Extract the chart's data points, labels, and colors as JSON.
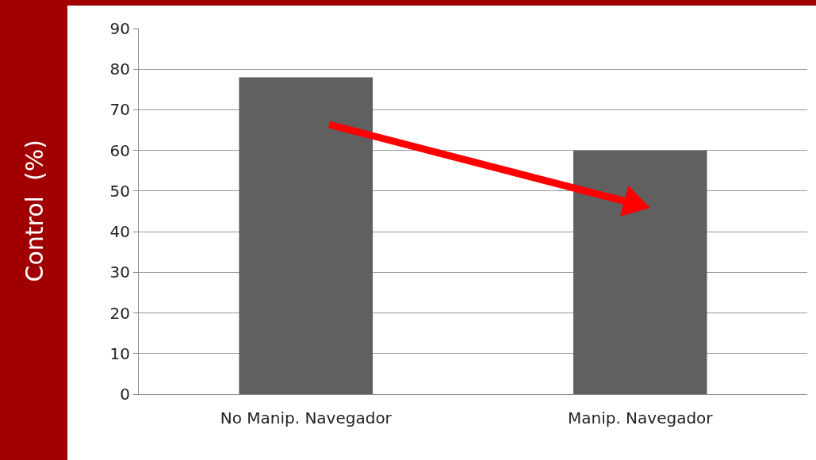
{
  "chart_data": {
    "type": "bar",
    "ylabel": "Control  (%)",
    "categories": [
      "No Manip. Navegador",
      "Manip. Navegador"
    ],
    "values": [
      78,
      60
    ],
    "color": "#606060",
    "ylim": [
      0,
      90
    ],
    "yticks": [
      0,
      10,
      20,
      30,
      40,
      50,
      60,
      70,
      80,
      90
    ],
    "grid": "y",
    "legend": false
  }
}
